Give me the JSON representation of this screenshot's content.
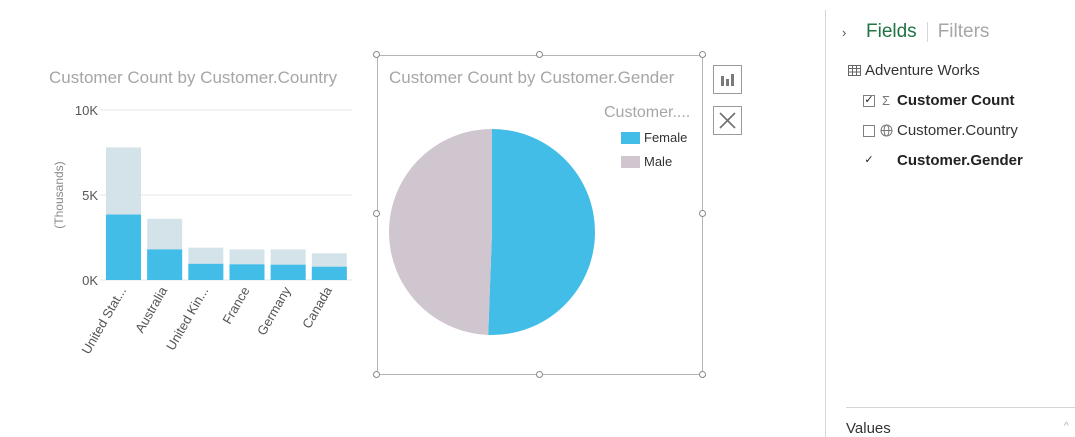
{
  "bar_chart": {
    "title": "Customer Count by Customer.Country",
    "ylabel": "(Thousands)",
    "tick_labels": [
      "10K",
      "5K",
      "0K"
    ]
  },
  "pie_chart": {
    "title": "Customer Count by Customer.Gender",
    "legend_title": "Customer....",
    "legend": [
      {
        "label": "Female",
        "color": "#41bde8"
      },
      {
        "label": "Male",
        "color": "#d0c6cf"
      }
    ]
  },
  "chart_data": [
    {
      "type": "bar",
      "title": "Customer Count by Customer.Country",
      "ylabel": "(Thousands)",
      "yticks": [
        0,
        5000,
        10000
      ],
      "ytick_labels": [
        "0K",
        "5K",
        "10K"
      ],
      "ylim": [
        0,
        10000
      ],
      "grid": true,
      "categories": [
        "United Stat...",
        "Australia",
        "United Kin...",
        "France",
        "Germany",
        "Canada"
      ],
      "values": [
        3850,
        1800,
        950,
        920,
        900,
        780
      ],
      "background_values": [
        7800,
        3600,
        1900,
        1800,
        1800,
        1570
      ],
      "colors": {
        "highlight": "#41bde8",
        "background": "#d4e3ea"
      }
    },
    {
      "type": "pie",
      "title": "Customer Count by Customer.Gender",
      "legend_title": "Customer....",
      "legend_position": "top-right",
      "labels": [
        "Female",
        "Male"
      ],
      "values": [
        9351,
        9133
      ],
      "colors": [
        "#41bde8",
        "#d0c6cf"
      ]
    }
  ],
  "toolbar": {
    "chart_type_icon": "bar-chart-icon",
    "remove_icon": "close-icon"
  },
  "fields_pane": {
    "expand_glyph": "›",
    "tab_fields": "Fields",
    "tab_filters": "Filters",
    "table_icon": "table-icon",
    "table_name": "Adventure Works",
    "fields": [
      {
        "label": "Customer Count",
        "checked": true,
        "icon": "sigma-icon",
        "glyph": "Σ",
        "bold": true
      },
      {
        "label": "Customer.Country",
        "checked": false,
        "icon": "globe-icon",
        "glyph": "",
        "bold": false
      },
      {
        "label": "Customer.Gender",
        "checked": true,
        "icon": "",
        "glyph": "",
        "bold": true
      }
    ],
    "check_glyph": "✓",
    "values_label": "Values",
    "values_caret": "^"
  }
}
